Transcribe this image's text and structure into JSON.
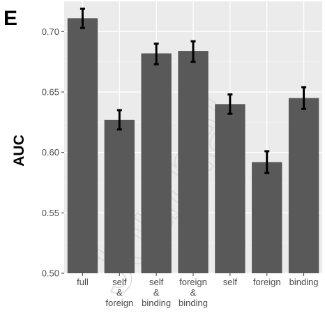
{
  "panel_label": "E",
  "watermark_text": "Journal",
  "chart_data": {
    "type": "bar",
    "categories": [
      [
        "full"
      ],
      [
        "self",
        "&",
        "foreign"
      ],
      [
        "self",
        "&",
        "binding"
      ],
      [
        "foreign",
        "&",
        "binding"
      ],
      [
        "self"
      ],
      [
        "foreign"
      ],
      [
        "binding"
      ]
    ],
    "values": [
      0.711,
      0.627,
      0.682,
      0.684,
      0.64,
      0.592,
      0.645
    ],
    "error_low": [
      0.703,
      0.619,
      0.673,
      0.675,
      0.632,
      0.583,
      0.636
    ],
    "error_high": [
      0.719,
      0.635,
      0.69,
      0.692,
      0.648,
      0.601,
      0.654
    ],
    "ylabel": "AUC",
    "xlabel": "",
    "ylim": [
      0.5,
      0.725
    ],
    "yticks": [
      0.5,
      0.55,
      0.6,
      0.65,
      0.7
    ],
    "ytick_labels": [
      "0.50",
      "0.55",
      "0.60",
      "0.65",
      "0.70"
    ],
    "grid": true,
    "colors": {
      "panel_background": "#ebebeb",
      "grid_major": "#ffffff",
      "bar_fill": "#595959",
      "error_bar": "#000000",
      "tick_text": "#4d4d4d"
    }
  }
}
